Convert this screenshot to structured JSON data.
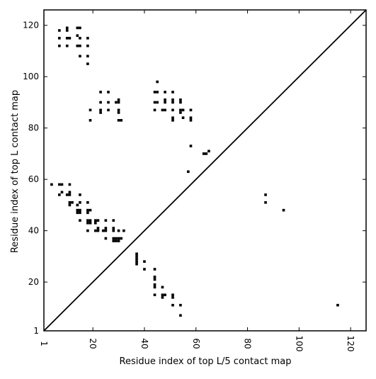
{
  "chart_data": {
    "type": "scatter",
    "title": "",
    "xlabel": "Residue index of top L/5 contact map",
    "ylabel": "Residue index of top L contact map",
    "xlim": [
      1,
      126
    ],
    "ylim": [
      1,
      126
    ],
    "x_ticks": [
      1,
      20,
      40,
      60,
      80,
      100,
      120
    ],
    "y_ticks": [
      1,
      20,
      40,
      60,
      80,
      100,
      120
    ],
    "grid": false,
    "legend": "none",
    "marker": "square",
    "colors": {
      "points": "#000000",
      "diagonal": "#000000",
      "frame": "#000000"
    },
    "diagonal_line": {
      "from": [
        1,
        1
      ],
      "to": [
        126,
        126
      ]
    },
    "series": [
      {
        "name": "",
        "region": "upper",
        "points": [
          [
            7,
            118
          ],
          [
            7,
            115
          ],
          [
            7,
            112
          ],
          [
            10,
            119
          ],
          [
            10,
            118
          ],
          [
            10,
            115
          ],
          [
            11,
            115
          ],
          [
            10,
            112
          ],
          [
            14,
            119
          ],
          [
            15,
            119
          ],
          [
            14,
            116
          ],
          [
            15,
            115
          ],
          [
            14,
            112
          ],
          [
            15,
            112
          ],
          [
            15,
            108
          ],
          [
            18,
            115
          ],
          [
            18,
            112
          ],
          [
            18,
            108
          ],
          [
            18,
            105
          ],
          [
            23,
            94
          ],
          [
            26,
            94
          ],
          [
            23,
            90
          ],
          [
            26,
            90
          ],
          [
            29,
            90
          ],
          [
            30,
            91
          ],
          [
            30,
            90
          ],
          [
            23,
            87
          ],
          [
            23,
            86
          ],
          [
            26,
            87
          ],
          [
            30,
            87
          ],
          [
            30,
            86
          ],
          [
            30,
            83
          ],
          [
            31,
            83
          ],
          [
            19,
            87
          ],
          [
            19,
            83
          ],
          [
            45,
            98
          ],
          [
            44,
            94
          ],
          [
            45,
            94
          ],
          [
            48,
            94
          ],
          [
            51,
            94
          ],
          [
            44,
            90
          ],
          [
            45,
            90
          ],
          [
            48,
            90
          ],
          [
            48,
            91
          ],
          [
            51,
            91
          ],
          [
            51,
            90
          ],
          [
            54,
            91
          ],
          [
            54,
            90
          ],
          [
            44,
            87
          ],
          [
            47,
            87
          ],
          [
            48,
            87
          ],
          [
            51,
            87
          ],
          [
            51,
            84
          ],
          [
            51,
            83
          ],
          [
            54,
            87
          ],
          [
            55,
            87
          ],
          [
            54,
            86
          ],
          [
            55,
            84
          ],
          [
            58,
            87
          ],
          [
            58,
            84
          ],
          [
            58,
            83
          ],
          [
            58,
            73
          ],
          [
            63,
            70
          ],
          [
            64,
            70
          ],
          [
            65,
            71
          ],
          [
            57,
            63
          ]
        ]
      },
      {
        "name": "",
        "region": "lower",
        "points": [
          [
            4,
            58
          ],
          [
            7,
            58
          ],
          [
            8,
            58
          ],
          [
            11,
            58
          ],
          [
            7,
            54
          ],
          [
            8,
            55
          ],
          [
            10,
            54
          ],
          [
            11,
            55
          ],
          [
            11,
            54
          ],
          [
            11,
            51
          ],
          [
            11,
            50
          ],
          [
            12,
            51
          ],
          [
            15,
            51
          ],
          [
            14,
            50
          ],
          [
            15,
            54
          ],
          [
            14,
            48
          ],
          [
            15,
            48
          ],
          [
            14,
            47
          ],
          [
            15,
            47
          ],
          [
            18,
            51
          ],
          [
            18,
            48
          ],
          [
            19,
            48
          ],
          [
            18,
            47
          ],
          [
            15,
            44
          ],
          [
            18,
            44
          ],
          [
            19,
            44
          ],
          [
            18,
            43
          ],
          [
            19,
            43
          ],
          [
            21,
            44
          ],
          [
            22,
            44
          ],
          [
            21,
            43
          ],
          [
            25,
            44
          ],
          [
            28,
            44
          ],
          [
            18,
            40
          ],
          [
            21,
            40
          ],
          [
            22,
            40
          ],
          [
            22,
            41
          ],
          [
            24,
            40
          ],
          [
            25,
            40
          ],
          [
            25,
            41
          ],
          [
            28,
            40
          ],
          [
            28,
            41
          ],
          [
            30,
            40
          ],
          [
            32,
            40
          ],
          [
            25,
            37
          ],
          [
            28,
            37
          ],
          [
            28,
            36
          ],
          [
            29,
            37
          ],
          [
            29,
            36
          ],
          [
            30,
            37
          ],
          [
            30,
            36
          ],
          [
            31,
            37
          ],
          [
            37,
            31
          ],
          [
            37,
            30
          ],
          [
            37,
            29
          ],
          [
            37,
            28
          ],
          [
            37,
            27
          ],
          [
            40,
            28
          ],
          [
            40,
            25
          ],
          [
            44,
            25
          ],
          [
            44,
            22
          ],
          [
            44,
            21
          ],
          [
            44,
            19
          ],
          [
            44,
            18
          ],
          [
            44,
            15
          ],
          [
            47,
            18
          ],
          [
            47,
            15
          ],
          [
            47,
            14
          ],
          [
            48,
            15
          ],
          [
            51,
            15
          ],
          [
            51,
            14
          ],
          [
            51,
            11
          ],
          [
            54,
            11
          ],
          [
            54,
            7
          ],
          [
            87,
            54
          ],
          [
            87,
            51
          ],
          [
            94,
            48
          ],
          [
            115,
            11
          ]
        ]
      }
    ]
  }
}
